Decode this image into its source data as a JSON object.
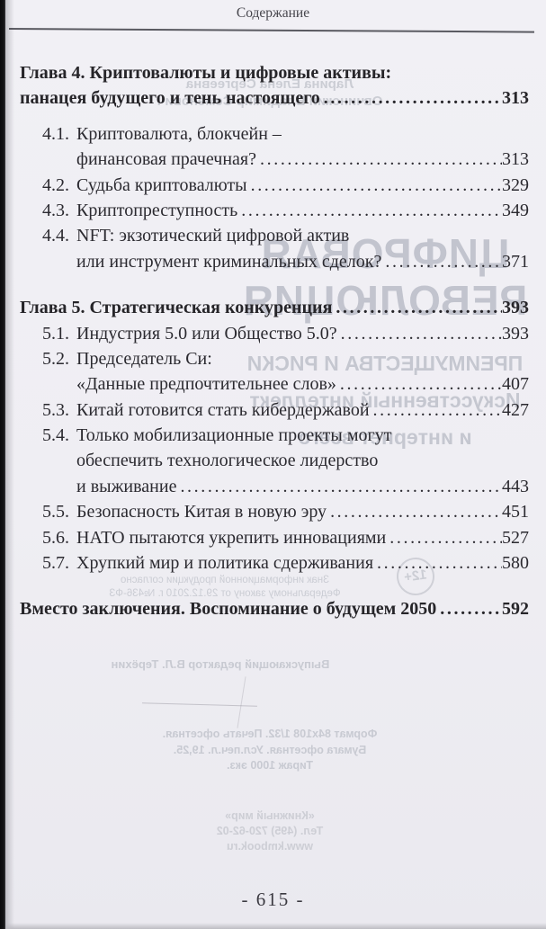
{
  "page": {
    "header": "Содержание",
    "page_number": "- 615 -"
  },
  "toc": {
    "rows": [
      {
        "style": "chapter",
        "text": "Глава 4. Криптовалюты и цифровые активы:",
        "page": null
      },
      {
        "style": "chapter",
        "text": "панацея будущего и тень настоящего",
        "page": "313"
      },
      {
        "style": "item gap-sm",
        "num": "4.1.",
        "text": "Криптовалюта, блокчейн –",
        "page": null
      },
      {
        "style": "cont",
        "text": "финансовая прачечная?",
        "page": "313"
      },
      {
        "style": "item",
        "num": "4.2.",
        "text": "Судьба криптовалюты",
        "page": "329"
      },
      {
        "style": "item",
        "num": "4.3.",
        "text": "Криптопреступность",
        "page": "349"
      },
      {
        "style": "item",
        "num": "4.4.",
        "text": "NFT: экзотический цифровой актив",
        "page": null
      },
      {
        "style": "cont",
        "text": "или инструмент криминальных сделок?",
        "page": "371"
      },
      {
        "style": "chapter gap",
        "text": "Глава 5. Стратегическая конкуренция",
        "page": "393"
      },
      {
        "style": "item",
        "num": "5.1.",
        "text": "Индустрия 5.0 или Общество 5.0?",
        "page": "393"
      },
      {
        "style": "item",
        "num": "5.2.",
        "text": "Председатель Си:",
        "page": null
      },
      {
        "style": "cont",
        "text": "«Данные предпочтительнее слов»",
        "page": "407"
      },
      {
        "style": "item",
        "num": "5.3.",
        "text": "Китай готовится стать кибердержавой",
        "page": "427"
      },
      {
        "style": "item",
        "num": "5.4.",
        "text": "Только мобилизационные проекты могут",
        "page": null
      },
      {
        "style": "cont",
        "text": "обеспечить технологическое лидерство",
        "page": null
      },
      {
        "style": "cont",
        "text": "и выживание",
        "page": "443"
      },
      {
        "style": "item",
        "num": "5.5.",
        "text": "Безопасность Китая в новую эру",
        "page": "451"
      },
      {
        "style": "item",
        "num": "5.6.",
        "text": "НАТО пытаются укрепить инновациями",
        "page": "527"
      },
      {
        "style": "item",
        "num": "5.7.",
        "text": "Хрупкий мир и политика сдерживания",
        "page": "580"
      },
      {
        "style": "chapter gap",
        "text": "Вместо заключения. Воспоминание о будущем 2050",
        "page": "592"
      }
    ]
  },
  "bleedthrough": {
    "authors": [
      "Ларина Елена Сергеевна",
      "Овчинский Владимир Семенович"
    ],
    "title_lines": [
      "ЦИФРОВАЯ",
      "РЕВОЛЮЦИЯ"
    ],
    "subtitle_lines": [
      "ПРЕИМУЩЕСТВА И РИСКИ",
      "Искусственный интеллект",
      "и интернет всего"
    ],
    "age_mark": "12+",
    "law_lines": [
      "Знак информационной продукции согласно",
      "Федеральному закону от 29.12.2010 г. №436-ФЗ"
    ],
    "editor_line": "Выпускающий редактор В.Л. Терёхин",
    "imprint_lines": [
      "Формат 84х108 1/32. Печать офсетная.",
      "Бумага офсетная. Усл.печ.л. 19,25.",
      "Тираж 1000 экз."
    ],
    "publisher_lines": [
      "«Книжный мир»",
      "Тел. (495) 720-62-02",
      "www.kmbook.ru"
    ]
  }
}
